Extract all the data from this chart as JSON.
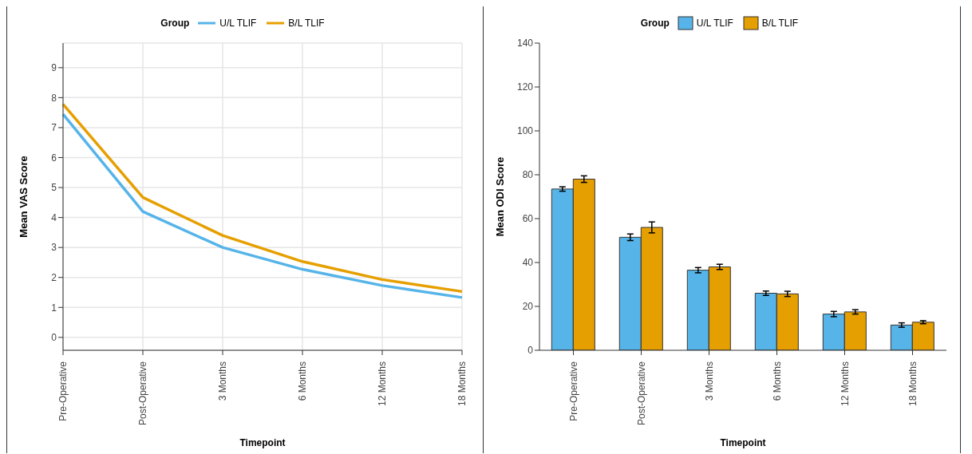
{
  "chart_data": [
    {
      "type": "line",
      "xlabel": "Timepoint",
      "ylabel": "Mean VAS Score",
      "legend_title": "Group",
      "legend": "top",
      "categories": [
        "Pre-Operative",
        "Post-Operative",
        "3 Months",
        "6 Months",
        "12 Months",
        "18 Months"
      ],
      "series": [
        {
          "name": "U/L TLIF",
          "color": "#56b4e9",
          "values": [
            7.45,
            4.2,
            3.0,
            2.27,
            1.73,
            1.33
          ]
        },
        {
          "name": "B/L TLIF",
          "color": "#e69f00",
          "values": [
            7.78,
            4.67,
            3.4,
            2.53,
            1.93,
            1.53
          ]
        }
      ],
      "ylim": [
        -0.43,
        9.82
      ],
      "yticks": [
        0,
        1,
        2,
        3,
        4,
        5,
        6,
        7,
        8,
        9
      ],
      "grid": true,
      "marker": "none",
      "line_style": "solid"
    },
    {
      "type": "bar",
      "xlabel": "Timepoint",
      "ylabel": "Mean ODI Score",
      "legend_title": "Group",
      "legend": "top",
      "categories": [
        "Pre-Operative",
        "Post-Operative",
        "3 Months",
        "6 Months",
        "12 Months",
        "18 Months"
      ],
      "series": [
        {
          "name": "U/L TLIF",
          "color": "#56b4e9",
          "values": [
            73.5,
            51.5,
            36.5,
            26,
            16.5,
            11.5
          ],
          "errors": [
            1,
            1.5,
            1.2,
            1,
            1.2,
            1
          ]
        },
        {
          "name": "B/L TLIF",
          "color": "#e69f00",
          "values": [
            78,
            56,
            38,
            25.7,
            17.5,
            12.8
          ],
          "errors": [
            1.5,
            2.5,
            1.2,
            1.2,
            1,
            0.7
          ]
        }
      ],
      "ylim": [
        0,
        140
      ],
      "yticks": [
        0,
        20,
        40,
        60,
        80,
        100,
        120,
        140
      ],
      "grid": false
    }
  ]
}
